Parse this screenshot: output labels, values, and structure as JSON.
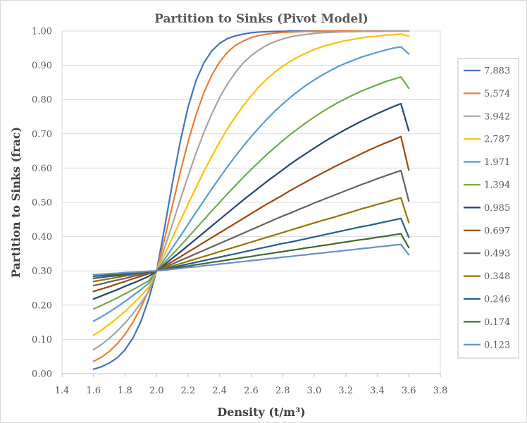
{
  "chart_data": {
    "type": "line",
    "title": "Partition to Sinks (Pivot Model)",
    "xlabel": "Density (t/m³)",
    "ylabel": "Partition to Sinks (frac)",
    "xlim": [
      1.4,
      3.8
    ],
    "ylim": [
      0,
      1
    ],
    "x_ticks": [
      "1.4",
      "1.6",
      "1.8",
      "2.0",
      "2.2",
      "2.4",
      "2.6",
      "2.8",
      "3.0",
      "3.2",
      "3.4",
      "3.6",
      "3.8"
    ],
    "y_ticks": [
      "0.00",
      "0.10",
      "0.20",
      "0.30",
      "0.40",
      "0.50",
      "0.60",
      "0.70",
      "0.80",
      "0.90",
      "1.00"
    ],
    "grid": "horizontal",
    "legend_position": "right",
    "x": [
      1.6,
      1.65,
      1.7,
      1.75,
      1.8,
      1.85,
      1.9,
      1.95,
      2.0,
      2.05,
      2.1,
      2.15,
      2.2,
      2.25,
      2.3,
      2.35,
      2.4,
      2.45,
      2.5,
      2.55,
      2.6,
      2.65,
      2.7,
      2.75,
      2.8,
      2.85,
      2.9,
      2.95,
      3.0,
      3.05,
      3.1,
      3.15,
      3.2,
      3.25,
      3.3,
      3.35,
      3.4,
      3.45,
      3.5,
      3.55,
      3.6
    ],
    "series": [
      {
        "name": "7.883",
        "color": "#4472c4",
        "values": [
          0.013,
          0.02,
          0.031,
          0.046,
          0.07,
          0.104,
          0.152,
          0.218,
          0.3,
          0.424,
          0.555,
          0.677,
          0.779,
          0.855,
          0.907,
          0.942,
          0.964,
          0.978,
          0.986,
          0.991,
          0.995,
          0.997,
          0.998,
          0.999,
          0.999,
          1.0,
          1.0,
          1.0,
          1.0,
          1.0,
          1.0,
          1.0,
          1.0,
          1.0,
          1.0,
          1.0,
          1.0,
          1.0,
          1.0,
          1.0,
          1.0
        ]
      },
      {
        "name": "5.574",
        "color": "#ed7d31",
        "values": [
          0.036,
          0.048,
          0.065,
          0.087,
          0.115,
          0.15,
          0.193,
          0.243,
          0.3,
          0.392,
          0.49,
          0.588,
          0.677,
          0.755,
          0.82,
          0.871,
          0.91,
          0.938,
          0.958,
          0.971,
          0.981,
          0.987,
          0.991,
          0.994,
          0.996,
          0.997,
          0.998,
          0.999,
          0.999,
          1.0,
          1.0,
          1.0,
          1.0,
          1.0,
          1.0,
          1.0,
          1.0,
          1.0,
          1.0,
          1.0,
          1.0
        ]
      },
      {
        "name": "3.942",
        "color": "#a5a5a5",
        "values": [
          0.07,
          0.085,
          0.103,
          0.124,
          0.148,
          0.175,
          0.206,
          0.24,
          0.3,
          0.366,
          0.436,
          0.507,
          0.577,
          0.643,
          0.704,
          0.758,
          0.806,
          0.846,
          0.879,
          0.907,
          0.928,
          0.945,
          0.959,
          0.969,
          0.977,
          0.983,
          0.987,
          0.99,
          0.993,
          0.995,
          0.996,
          0.997,
          0.998,
          0.998,
          0.999,
          0.999,
          0.999,
          1.0,
          1.0,
          1.0,
          1.0
        ]
      },
      {
        "name": "2.787",
        "color": "#ffc000",
        "values": [
          0.112,
          0.127,
          0.144,
          0.162,
          0.182,
          0.204,
          0.227,
          0.252,
          0.3,
          0.347,
          0.396,
          0.446,
          0.495,
          0.543,
          0.59,
          0.634,
          0.676,
          0.715,
          0.75,
          0.782,
          0.811,
          0.837,
          0.86,
          0.88,
          0.897,
          0.912,
          0.925,
          0.936,
          0.946,
          0.954,
          0.961,
          0.967,
          0.972,
          0.976,
          0.98,
          0.983,
          0.985,
          0.988,
          0.989,
          0.991,
          0.985
        ]
      },
      {
        "name": "1.971",
        "color": "#5b9bd5",
        "values": [
          0.153,
          0.166,
          0.18,
          0.195,
          0.211,
          0.228,
          0.245,
          0.264,
          0.3,
          0.333,
          0.367,
          0.401,
          0.436,
          0.471,
          0.505,
          0.539,
          0.572,
          0.604,
          0.635,
          0.664,
          0.692,
          0.718,
          0.743,
          0.766,
          0.787,
          0.807,
          0.825,
          0.842,
          0.857,
          0.871,
          0.884,
          0.896,
          0.906,
          0.915,
          0.924,
          0.931,
          0.938,
          0.944,
          0.95,
          0.954,
          0.933
        ]
      },
      {
        "name": "1.394",
        "color": "#70ad47",
        "values": [
          0.189,
          0.199,
          0.21,
          0.221,
          0.233,
          0.245,
          0.258,
          0.271,
          0.3,
          0.324,
          0.348,
          0.373,
          0.398,
          0.424,
          0.449,
          0.475,
          0.5,
          0.525,
          0.549,
          0.573,
          0.596,
          0.618,
          0.64,
          0.66,
          0.68,
          0.699,
          0.716,
          0.733,
          0.749,
          0.764,
          0.778,
          0.791,
          0.803,
          0.814,
          0.825,
          0.834,
          0.843,
          0.852,
          0.859,
          0.866,
          0.833
        ]
      },
      {
        "name": "0.985",
        "color": "#264478",
        "values": [
          0.218,
          0.227,
          0.236,
          0.245,
          0.255,
          0.264,
          0.274,
          0.284,
          0.3,
          0.318,
          0.337,
          0.355,
          0.374,
          0.393,
          0.412,
          0.431,
          0.45,
          0.469,
          0.488,
          0.507,
          0.525,
          0.543,
          0.561,
          0.578,
          0.595,
          0.612,
          0.628,
          0.643,
          0.658,
          0.673,
          0.687,
          0.7,
          0.713,
          0.725,
          0.737,
          0.748,
          0.759,
          0.769,
          0.779,
          0.788,
          0.709
        ]
      },
      {
        "name": "0.697",
        "color": "#9e480e",
        "values": [
          0.24,
          0.247,
          0.254,
          0.262,
          0.269,
          0.277,
          0.284,
          0.292,
          0.3,
          0.314,
          0.327,
          0.341,
          0.355,
          0.369,
          0.383,
          0.397,
          0.411,
          0.425,
          0.439,
          0.453,
          0.467,
          0.481,
          0.495,
          0.508,
          0.521,
          0.535,
          0.548,
          0.56,
          0.573,
          0.585,
          0.597,
          0.609,
          0.62,
          0.631,
          0.642,
          0.653,
          0.663,
          0.673,
          0.682,
          0.692,
          0.594
        ]
      },
      {
        "name": "0.493",
        "color": "#636363",
        "values": [
          0.257,
          0.262,
          0.268,
          0.273,
          0.278,
          0.284,
          0.289,
          0.295,
          0.3,
          0.31,
          0.32,
          0.33,
          0.34,
          0.35,
          0.36,
          0.37,
          0.38,
          0.39,
          0.4,
          0.41,
          0.42,
          0.43,
          0.44,
          0.45,
          0.46,
          0.469,
          0.479,
          0.488,
          0.498,
          0.507,
          0.516,
          0.525,
          0.534,
          0.543,
          0.552,
          0.56,
          0.569,
          0.577,
          0.585,
          0.593,
          0.504
        ]
      },
      {
        "name": "0.348",
        "color": "#997300",
        "values": [
          0.269,
          0.273,
          0.277,
          0.281,
          0.285,
          0.289,
          0.293,
          0.296,
          0.3,
          0.307,
          0.314,
          0.321,
          0.328,
          0.335,
          0.342,
          0.349,
          0.356,
          0.363,
          0.37,
          0.377,
          0.384,
          0.391,
          0.398,
          0.405,
          0.412,
          0.419,
          0.426,
          0.433,
          0.44,
          0.447,
          0.453,
          0.46,
          0.467,
          0.474,
          0.481,
          0.487,
          0.494,
          0.5,
          0.507,
          0.513,
          0.441
        ]
      },
      {
        "name": "0.246",
        "color": "#255e91",
        "values": [
          0.278,
          0.281,
          0.284,
          0.286,
          0.289,
          0.292,
          0.294,
          0.297,
          0.3,
          0.305,
          0.31,
          0.315,
          0.32,
          0.325,
          0.33,
          0.335,
          0.34,
          0.345,
          0.35,
          0.355,
          0.36,
          0.365,
          0.37,
          0.375,
          0.38,
          0.384,
          0.389,
          0.394,
          0.399,
          0.404,
          0.409,
          0.414,
          0.419,
          0.424,
          0.429,
          0.433,
          0.438,
          0.443,
          0.448,
          0.453,
          0.398
        ]
      },
      {
        "name": "0.174",
        "color": "#43682b",
        "values": [
          0.284,
          0.286,
          0.288,
          0.29,
          0.292,
          0.294,
          0.296,
          0.298,
          0.3,
          0.304,
          0.307,
          0.311,
          0.314,
          0.318,
          0.321,
          0.325,
          0.328,
          0.332,
          0.335,
          0.339,
          0.342,
          0.346,
          0.349,
          0.353,
          0.356,
          0.36,
          0.363,
          0.367,
          0.37,
          0.374,
          0.377,
          0.381,
          0.384,
          0.388,
          0.391,
          0.394,
          0.398,
          0.401,
          0.405,
          0.408,
          0.368
        ]
      },
      {
        "name": "0.123",
        "color": "#698ed0",
        "values": [
          0.289,
          0.29,
          0.292,
          0.293,
          0.295,
          0.296,
          0.297,
          0.299,
          0.3,
          0.302,
          0.305,
          0.307,
          0.31,
          0.312,
          0.315,
          0.317,
          0.32,
          0.322,
          0.325,
          0.327,
          0.33,
          0.332,
          0.335,
          0.337,
          0.34,
          0.342,
          0.345,
          0.347,
          0.35,
          0.352,
          0.355,
          0.357,
          0.36,
          0.362,
          0.365,
          0.367,
          0.37,
          0.372,
          0.375,
          0.377,
          0.347
        ]
      }
    ]
  }
}
